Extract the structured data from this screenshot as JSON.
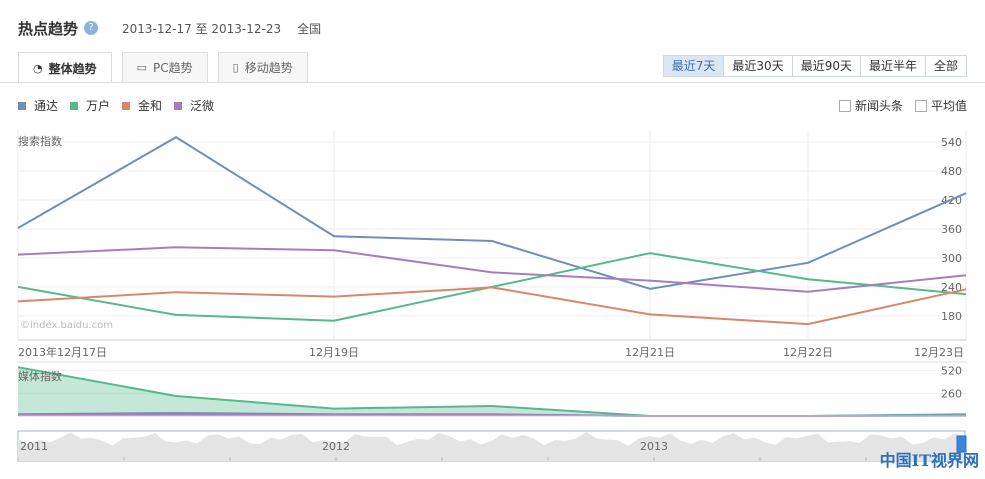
{
  "header": {
    "title": "热点趋势",
    "help": "?",
    "date_range": "2013-12-17 至 2013-12-23",
    "region": "全国"
  },
  "tabs": [
    {
      "label": "整体趋势",
      "icon": "pie-icon",
      "active": true
    },
    {
      "label": "PC趋势",
      "icon": "monitor-icon",
      "active": false
    },
    {
      "label": "移动趋势",
      "icon": "mobile-icon",
      "active": false
    }
  ],
  "periods": [
    {
      "label": "最近7天",
      "active": true
    },
    {
      "label": "最近30天",
      "active": false
    },
    {
      "label": "最近90天",
      "active": false
    },
    {
      "label": "最近半年",
      "active": false
    },
    {
      "label": "全部",
      "active": false
    }
  ],
  "options": [
    {
      "label": "新闻头条",
      "checked": false
    },
    {
      "label": "平均值",
      "checked": false
    }
  ],
  "watermark": "©index.baidu.com",
  "corner_logo": "中国IT视界网",
  "chart_data": [
    {
      "type": "line",
      "title": "搜索指数",
      "x": [
        "2013-12-17",
        "2013-12-18",
        "2013-12-19",
        "2013-12-20",
        "2013-12-21",
        "2013-12-22",
        "2013-12-23"
      ],
      "x_tick_labels": [
        {
          "x": "2013-12-17",
          "label": "2013年12月17日"
        },
        {
          "x": "2013-12-19",
          "label": "12月19日"
        },
        {
          "x": "2013-12-21",
          "label": "12月21日"
        },
        {
          "x": "2013-12-22",
          "label": "12月22日"
        },
        {
          "x": "2013-12-23",
          "label": "12月23日"
        }
      ],
      "y_ticks": [
        180,
        240,
        300,
        360,
        420,
        480,
        540
      ],
      "ylim": [
        130,
        565
      ],
      "grid": true,
      "series": [
        {
          "name": "通达",
          "color": "#6f8fb8",
          "values": [
            362,
            550,
            345,
            335,
            236,
            290,
            434
          ]
        },
        {
          "name": "万户",
          "color": "#55b98c",
          "values": [
            240,
            182,
            170,
            240,
            310,
            256,
            225
          ]
        },
        {
          "name": "金和",
          "color": "#d8876a",
          "values": [
            210,
            229,
            220,
            239,
            183,
            163,
            235
          ]
        },
        {
          "name": "泛微",
          "color": "#a57ec0",
          "values": [
            307,
            322,
            316,
            270,
            253,
            230,
            264
          ]
        }
      ]
    },
    {
      "type": "area",
      "title": "媒体指数",
      "x": [
        "2013-12-17",
        "2013-12-18",
        "2013-12-19",
        "2013-12-20",
        "2013-12-21",
        "2013-12-22",
        "2013-12-23"
      ],
      "y_ticks": [
        260,
        520
      ],
      "ylim": [
        0,
        620
      ],
      "series": [
        {
          "name": "万户",
          "color": "#55b98c",
          "values": [
            560,
            230,
            85,
            115,
            0,
            0,
            20
          ]
        },
        {
          "name": "通达",
          "color": "#6f8fb8",
          "values": [
            20,
            35,
            20,
            20,
            0,
            0,
            5
          ]
        },
        {
          "name": "泛微",
          "color": "#a57ec0",
          "values": [
            15,
            15,
            15,
            15,
            0,
            0,
            5
          ]
        }
      ]
    }
  ],
  "timeline": {
    "labels": [
      "2011",
      "2012",
      "2013"
    ]
  }
}
